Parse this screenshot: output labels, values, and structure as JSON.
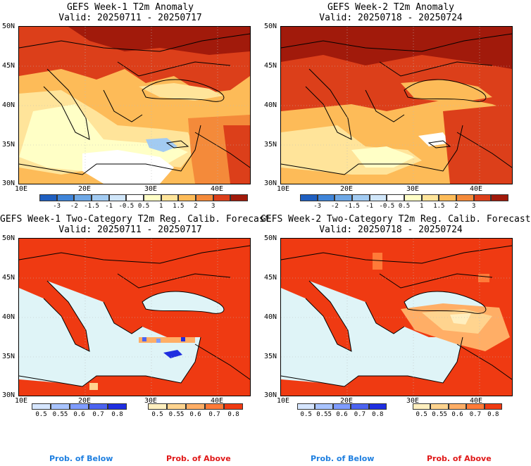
{
  "panels": [
    {
      "title1": "GEFS Week-1 T2m Anomaly",
      "title2": "Valid: 20250711 - 20250717"
    },
    {
      "title1": "GEFS Week-2 T2m Anomaly",
      "title2": "Valid: 20250718 - 20250724"
    },
    {
      "title1": "GEFS Week-1 Two-Category T2m Reg. Calib. Forecast",
      "title2": "Valid: 20250711 - 20250717"
    },
    {
      "title1": "GEFS Week-2 Two-Category T2m Reg. Calib. Forecast",
      "title2": "Valid: 20250718 - 20250724"
    }
  ],
  "axes": {
    "lat_labels": [
      "50N",
      "45N",
      "40N",
      "35N",
      "30N"
    ],
    "lon_labels": [
      "10E",
      "20E",
      "30E",
      "40E"
    ]
  },
  "anomaly_scale": {
    "ticks": [
      "-3",
      "-2",
      "-1.5",
      "-1",
      "-0.5",
      "0.5",
      "1",
      "1.5",
      "2",
      "3"
    ],
    "colors": [
      "#1f5fc0",
      "#3f84d8",
      "#6ea8e6",
      "#a2cbf2",
      "#d0e6fa",
      "#ffffff",
      "#ffffc6",
      "#ffe49a",
      "#fdbb58",
      "#f48a3a",
      "#dc3f1a",
      "#a11a0b"
    ]
  },
  "prob_below_scale": {
    "ticks": [
      "0.5",
      "0.55",
      "0.6",
      "0.7",
      "0.8"
    ],
    "colors": [
      "#d6e6ff",
      "#a9c4ff",
      "#7f9cff",
      "#4c63f0",
      "#1f2ee0"
    ]
  },
  "prob_above_scale": {
    "ticks": [
      "0.5",
      "0.55",
      "0.6",
      "0.7",
      "0.8"
    ],
    "colors": [
      "#ffefbf",
      "#ffd48f",
      "#ffae66",
      "#ff7a38",
      "#ef3a12"
    ]
  },
  "legend": {
    "below_left": "Prob. of Below",
    "above_left": "Prob. of Above",
    "below_right": "Prob. of Below",
    "above_right": "Prob. of Above"
  },
  "colors": {
    "sea_blue": "#dff4f7",
    "below_text": "#1e7fe0",
    "above_text": "#e01818"
  }
}
